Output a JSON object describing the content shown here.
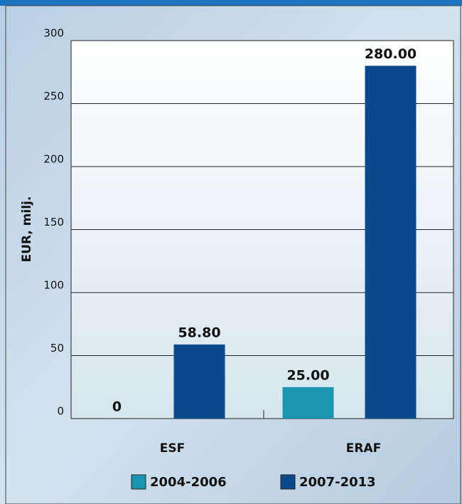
{
  "chart_data": {
    "type": "bar",
    "y_label": "EUR, milj.",
    "categories": [
      "ESF",
      "ERAF"
    ],
    "series": [
      {
        "name": "2004-2006",
        "color": "#1b95b0",
        "values": [
          0,
          25
        ],
        "value_labels": [
          "0",
          "25.00"
        ]
      },
      {
        "name": "2007-2013",
        "color": "#0a4a8c",
        "values": [
          58.8,
          280
        ],
        "value_labels": [
          "58.80",
          "280.00"
        ]
      }
    ],
    "ylim": [
      0,
      300
    ],
    "yticks": [
      0,
      50,
      100,
      150,
      200,
      250,
      300
    ],
    "grid": true,
    "legend": "bottom"
  }
}
